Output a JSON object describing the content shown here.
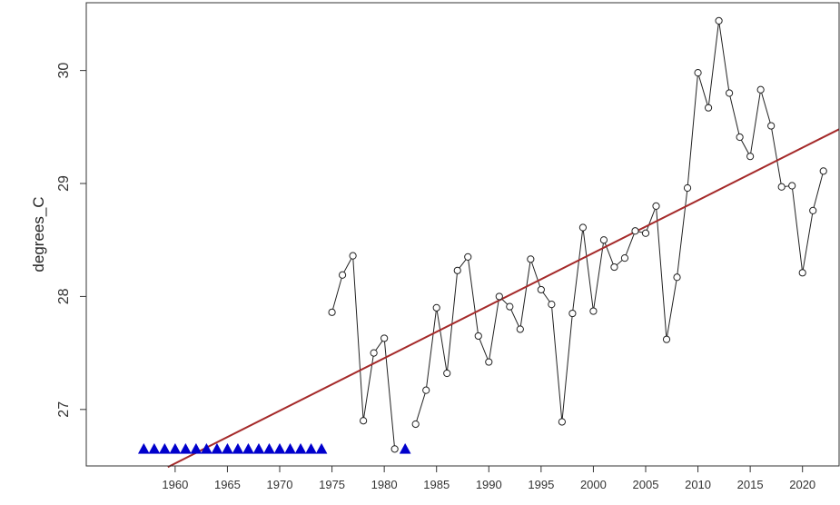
{
  "chart_data": {
    "type": "line",
    "title": "",
    "xlabel": "",
    "ylabel": "degrees_C",
    "xlim": [
      1951.5,
      2023.5
    ],
    "ylim": [
      26.5,
      30.6
    ],
    "x_ticks": [
      1960,
      1965,
      1970,
      1975,
      1980,
      1985,
      1990,
      1995,
      2000,
      2005,
      2010,
      2015,
      2020
    ],
    "y_ticks": [
      27,
      28,
      29,
      30
    ],
    "grid": false,
    "legend": "none",
    "series": [
      {
        "marker": "open-circle",
        "line": "thin-black",
        "x": [
          1975,
          1976,
          1977,
          1978,
          1979,
          1980,
          1981,
          1983,
          1984,
          1985,
          1986,
          1987,
          1988,
          1989,
          1990,
          1991,
          1992,
          1993,
          1994,
          1995,
          1996,
          1997,
          1998,
          1999,
          2000,
          2001,
          2002,
          2003,
          2004,
          2005,
          2006,
          2007,
          2008,
          2009,
          2010,
          2011,
          2012,
          2013,
          2014,
          2015,
          2016,
          2017,
          2018,
          2019,
          2020,
          2021,
          2022
        ],
        "y": [
          27.86,
          28.19,
          28.36,
          26.9,
          27.5,
          27.63,
          26.65,
          26.87,
          27.17,
          27.9,
          27.32,
          28.23,
          28.35,
          27.65,
          27.42,
          28.0,
          27.91,
          27.71,
          28.33,
          28.06,
          27.93,
          26.89,
          27.85,
          28.61,
          27.87,
          28.5,
          28.26,
          28.34,
          28.58,
          28.56,
          28.8,
          27.62,
          28.17,
          28.96,
          29.98,
          29.67,
          30.44,
          29.8,
          29.41,
          29.24,
          29.83,
          29.51,
          28.97,
          28.98,
          28.21,
          28.76,
          29.11
        ]
      },
      {
        "marker": "filled-triangle",
        "color": "#0000cc",
        "x": [
          1957,
          1958,
          1959,
          1960,
          1961,
          1962,
          1963,
          1964,
          1965,
          1966,
          1967,
          1968,
          1969,
          1970,
          1971,
          1972,
          1973,
          1974,
          1982
        ],
        "y": [
          26.65,
          26.65,
          26.65,
          26.65,
          26.65,
          26.65,
          26.65,
          26.65,
          26.65,
          26.65,
          26.65,
          26.65,
          26.65,
          26.65,
          26.65,
          26.65,
          26.65,
          26.65,
          26.65
        ]
      },
      {
        "kind": "trend-line",
        "color": "#a52a2a",
        "x": [
          1959.3,
          2023.5
        ],
        "y": [
          26.49,
          29.48
        ]
      }
    ]
  }
}
